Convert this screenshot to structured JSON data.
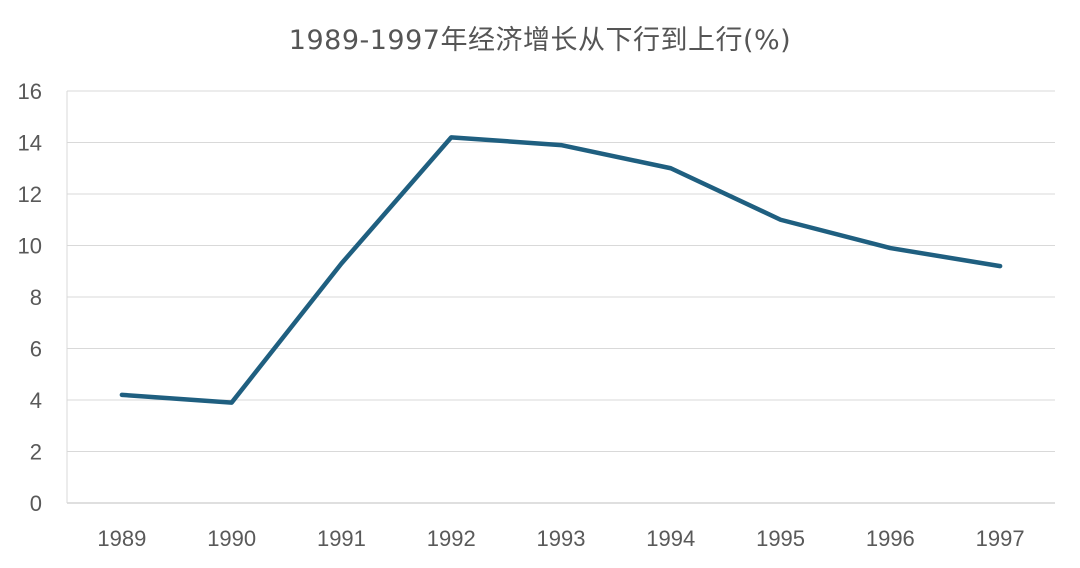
{
  "chart_data": {
    "type": "line",
    "title": "1989-1997年经济增长从下行到上行(%)",
    "xlabel": "",
    "ylabel": "",
    "categories": [
      "1989",
      "1990",
      "1991",
      "1992",
      "1993",
      "1994",
      "1995",
      "1996",
      "1997"
    ],
    "series": [
      {
        "values": [
          4.2,
          3.9,
          9.3,
          14.2,
          13.9,
          13.0,
          11.0,
          9.9,
          9.2
        ],
        "color": "#1f5f80"
      }
    ],
    "ylim": [
      0,
      16
    ],
    "yticks": [
      "0",
      "2",
      "4",
      "6",
      "8",
      "10",
      "12",
      "14",
      "16"
    ],
    "grid": true,
    "legend": "none"
  }
}
